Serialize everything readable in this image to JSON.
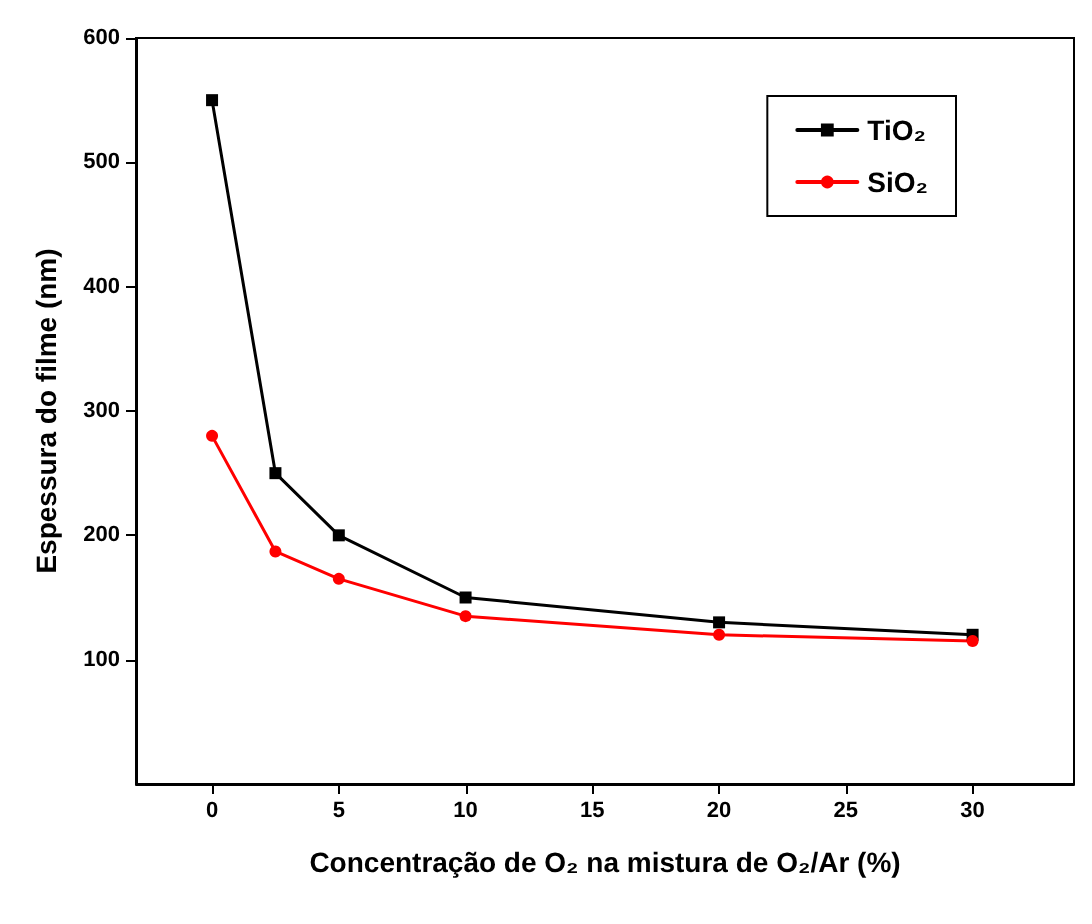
{
  "chart_data": {
    "type": "line",
    "xlabel": "Concentração de O₂ na mistura de O₂/Ar (%)",
    "ylabel": "Espessura do filme (nm)",
    "x": [
      0,
      2.5,
      5,
      10,
      20,
      30
    ],
    "series": [
      {
        "name": "TiO₂",
        "color": "#000000",
        "marker": "square",
        "values": [
          550,
          250,
          200,
          150,
          130,
          120
        ]
      },
      {
        "name": "SiO₂",
        "color": "#ff0000",
        "marker": "circle",
        "values": [
          280,
          187,
          165,
          135,
          120,
          115
        ]
      }
    ],
    "xlim": [
      -3,
      34
    ],
    "xticks": [
      0,
      5,
      10,
      15,
      20,
      25,
      30
    ],
    "ylim": [
      0,
      600
    ],
    "yticks": [
      100,
      200,
      300,
      400,
      500,
      600
    ],
    "grid": false,
    "legend": "top right",
    "line_style": "solid"
  }
}
